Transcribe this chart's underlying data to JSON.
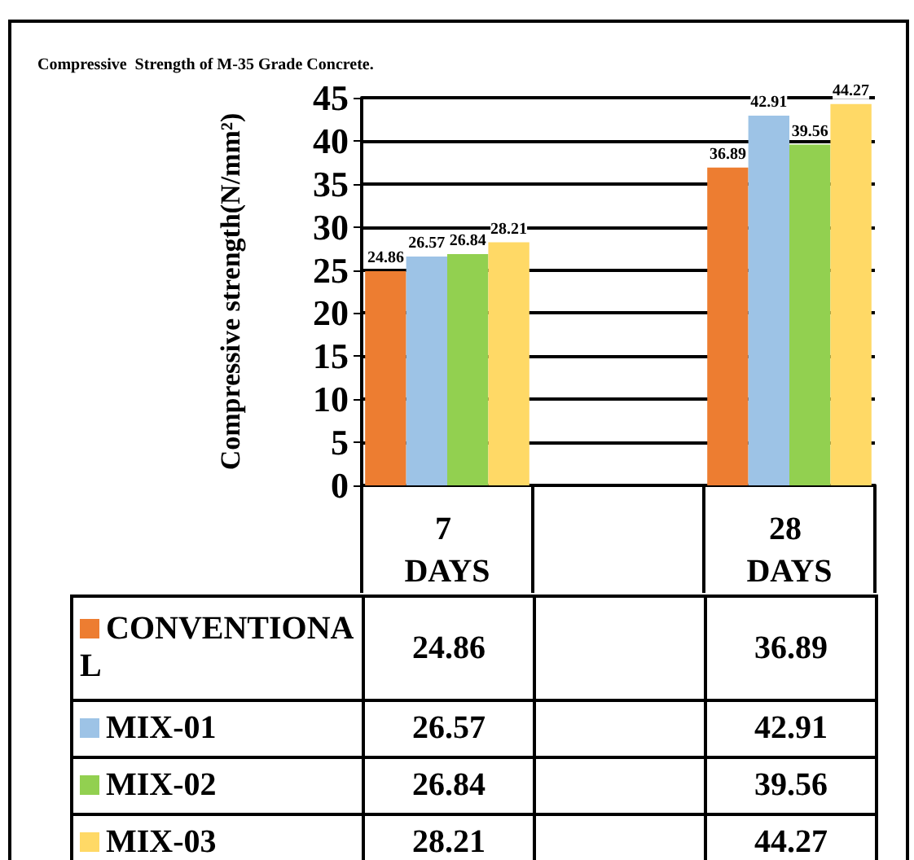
{
  "chart_data": {
    "type": "bar",
    "title": "Compressive  Strength of M-35 Grade Concrete.",
    "ylabel": "Compressive strength(N/mm²)",
    "categories": [
      "7 DAYS",
      null,
      "28 DAYS"
    ],
    "series": [
      {
        "name": "CONVENTIONAL",
        "color": "#ed7d31",
        "values": [
          24.86,
          null,
          36.89
        ],
        "value_labels": [
          "24.86",
          null,
          "36.89"
        ]
      },
      {
        "name": "MIX-01",
        "color": "#9dc3e6",
        "values": [
          26.57,
          null,
          42.91
        ],
        "value_labels": [
          "26.57",
          null,
          "42.91"
        ]
      },
      {
        "name": "MIX-02",
        "color": "#92d050",
        "values": [
          26.84,
          null,
          39.56
        ],
        "value_labels": [
          "26.84",
          null,
          "39.56"
        ]
      },
      {
        "name": "MIX-03",
        "color": "#ffd966",
        "values": [
          28.21,
          null,
          44.27
        ],
        "value_labels": [
          "28.21",
          null,
          "44.27"
        ]
      }
    ],
    "ylim": [
      0,
      45
    ],
    "yticks": [
      0,
      5,
      10,
      15,
      20,
      25,
      30,
      35,
      40,
      45
    ],
    "grid": "y",
    "legend": "bottom",
    "data_labels": true
  }
}
